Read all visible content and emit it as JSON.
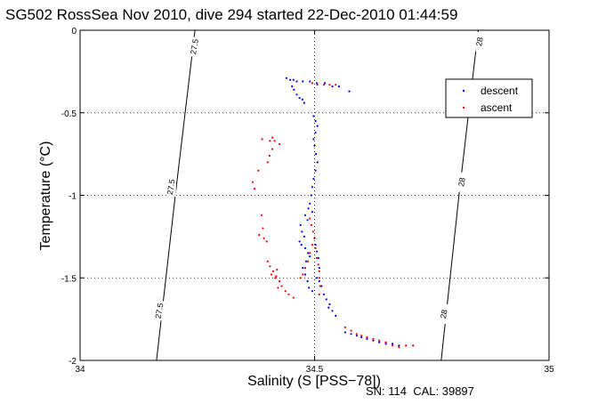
{
  "chart_data": {
    "type": "scatter",
    "title": "SG502 RossSea Nov 2010, dive 294 started 22-Dec-2010 01:44:59",
    "xlabel": "Salinity (S [PSS−78])",
    "ylabel": "Temperature (°C)",
    "xlim": [
      34,
      35
    ],
    "ylim": [
      -2,
      0
    ],
    "x_ticks": [
      "34",
      "34.5",
      "35"
    ],
    "y_ticks": [
      "0",
      "-0.5",
      "-1",
      "-1.5",
      "-2"
    ],
    "grid": true,
    "legend_position": "top-right",
    "footer": "SN: 114  CAL: 39897",
    "colors": {
      "descent": "#0000ff",
      "ascent": "#ff0000",
      "contour": "#000000"
    },
    "contours": [
      {
        "label": "27.5",
        "points": [
          [
            34.163,
            -2.0
          ],
          [
            34.203,
            -1.0
          ],
          [
            34.245,
            0.0
          ]
        ]
      },
      {
        "label": "28",
        "points": [
          [
            34.77,
            -2.0
          ],
          [
            34.808,
            -1.0
          ],
          [
            34.849,
            0.0
          ]
        ]
      }
    ],
    "contour_labels": [
      {
        "text": "27.5",
        "s": 34.245,
        "t": -0.1
      },
      {
        "text": "27.5",
        "s": 34.195,
        "t": -0.95
      },
      {
        "text": "27.5",
        "s": 34.17,
        "t": -1.7
      },
      {
        "text": "28",
        "s": 34.853,
        "t": -0.07
      },
      {
        "text": "28",
        "s": 34.815,
        "t": -0.92
      },
      {
        "text": "28",
        "s": 34.777,
        "t": -1.72
      }
    ],
    "series": [
      {
        "name": "descent",
        "points": [
          [
            34.44,
            -0.29
          ],
          [
            34.448,
            -0.3
          ],
          [
            34.455,
            -0.3
          ],
          [
            34.462,
            -0.31
          ],
          [
            34.475,
            -0.31
          ],
          [
            34.49,
            -0.31
          ],
          [
            34.505,
            -0.32
          ],
          [
            34.522,
            -0.32
          ],
          [
            34.538,
            -0.34
          ],
          [
            34.552,
            -0.34
          ],
          [
            34.574,
            -0.37
          ],
          [
            34.452,
            -0.34
          ],
          [
            34.456,
            -0.36
          ],
          [
            34.462,
            -0.39
          ],
          [
            34.468,
            -0.41
          ],
          [
            34.474,
            -0.42
          ],
          [
            34.478,
            -0.44
          ],
          [
            34.498,
            -0.52
          ],
          [
            34.502,
            -0.55
          ],
          [
            34.506,
            -0.58
          ],
          [
            34.502,
            -0.62
          ],
          [
            34.498,
            -0.66
          ],
          [
            34.5,
            -0.7
          ],
          [
            34.503,
            -0.75
          ],
          [
            34.506,
            -0.8
          ],
          [
            34.502,
            -0.85
          ],
          [
            34.498,
            -0.9
          ],
          [
            34.495,
            -0.95
          ],
          [
            34.493,
            -1.0
          ],
          [
            34.49,
            -1.05
          ],
          [
            34.487,
            -1.08
          ],
          [
            34.495,
            -1.1
          ],
          [
            34.48,
            -1.12
          ],
          [
            34.485,
            -1.15
          ],
          [
            34.47,
            -1.18
          ],
          [
            34.473,
            -1.22
          ],
          [
            34.478,
            -1.25
          ],
          [
            34.468,
            -1.28
          ],
          [
            34.472,
            -1.3
          ],
          [
            34.48,
            -1.32
          ],
          [
            34.486,
            -1.35
          ],
          [
            34.49,
            -1.37
          ],
          [
            34.482,
            -1.4
          ],
          [
            34.475,
            -1.44
          ],
          [
            34.48,
            -1.48
          ],
          [
            34.485,
            -1.52
          ],
          [
            34.488,
            -1.56
          ],
          [
            34.495,
            -1.58
          ],
          [
            34.51,
            -1.52
          ],
          [
            34.515,
            -1.55
          ],
          [
            34.52,
            -1.6
          ],
          [
            34.525,
            -1.63
          ],
          [
            34.532,
            -1.66
          ],
          [
            34.538,
            -1.7
          ],
          [
            34.545,
            -1.73
          ],
          [
            34.53,
            -1.68
          ],
          [
            34.5,
            -1.26
          ],
          [
            34.502,
            -1.3
          ],
          [
            34.505,
            -1.34
          ],
          [
            34.508,
            -1.38
          ],
          [
            34.51,
            -1.44
          ],
          [
            34.505,
            -1.5
          ],
          [
            34.565,
            -1.83
          ],
          [
            34.578,
            -1.84
          ],
          [
            34.59,
            -1.85
          ],
          [
            34.6,
            -1.86
          ],
          [
            34.612,
            -1.87
          ],
          [
            34.625,
            -1.88
          ],
          [
            34.638,
            -1.89
          ],
          [
            34.652,
            -1.9
          ],
          [
            34.666,
            -1.9
          ],
          [
            34.68,
            -1.91
          ],
          [
            34.695,
            -1.91
          ],
          [
            34.71,
            -1.91
          ]
        ]
      },
      {
        "name": "ascent",
        "points": [
          [
            34.495,
            -0.32
          ],
          [
            34.506,
            -0.33
          ],
          [
            34.52,
            -0.33
          ],
          [
            34.532,
            -0.33
          ],
          [
            34.545,
            -0.33
          ],
          [
            34.388,
            -0.66
          ],
          [
            34.405,
            -0.67
          ],
          [
            34.41,
            -0.65
          ],
          [
            34.415,
            -0.67
          ],
          [
            34.425,
            -0.69
          ],
          [
            34.41,
            -0.72
          ],
          [
            34.404,
            -0.76
          ],
          [
            34.4,
            -0.8
          ],
          [
            34.38,
            -0.85
          ],
          [
            34.368,
            -0.92
          ],
          [
            34.372,
            -0.96
          ],
          [
            34.387,
            -1.12
          ],
          [
            34.39,
            -1.2
          ],
          [
            34.382,
            -1.24
          ],
          [
            34.392,
            -1.26
          ],
          [
            34.398,
            -1.28
          ],
          [
            34.4,
            -1.4
          ],
          [
            34.405,
            -1.43
          ],
          [
            34.412,
            -1.46
          ],
          [
            34.418,
            -1.49
          ],
          [
            34.425,
            -1.52
          ],
          [
            34.43,
            -1.55
          ],
          [
            34.438,
            -1.58
          ],
          [
            34.445,
            -1.6
          ],
          [
            34.455,
            -1.62
          ],
          [
            34.42,
            -1.45
          ],
          [
            34.408,
            -1.48
          ],
          [
            34.416,
            -1.5
          ],
          [
            34.422,
            -1.56
          ],
          [
            34.49,
            -1.14
          ],
          [
            34.493,
            -1.18
          ],
          [
            34.497,
            -1.22
          ],
          [
            34.5,
            -1.26
          ],
          [
            34.495,
            -1.3
          ],
          [
            34.49,
            -1.35
          ],
          [
            34.486,
            -1.4
          ],
          [
            34.48,
            -1.44
          ],
          [
            34.475,
            -1.48
          ],
          [
            34.47,
            -1.5
          ],
          [
            34.502,
            -1.32
          ],
          [
            34.505,
            -1.38
          ],
          [
            34.508,
            -1.42
          ],
          [
            34.51,
            -1.46
          ],
          [
            34.51,
            -1.5
          ],
          [
            34.512,
            -1.55
          ],
          [
            34.51,
            -1.6
          ],
          [
            34.565,
            -1.8
          ],
          [
            34.578,
            -1.82
          ],
          [
            34.59,
            -1.84
          ],
          [
            34.6,
            -1.85
          ],
          [
            34.612,
            -1.86
          ],
          [
            34.625,
            -1.87
          ],
          [
            34.638,
            -1.88
          ],
          [
            34.652,
            -1.89
          ],
          [
            34.666,
            -1.91
          ],
          [
            34.68,
            -1.92
          ],
          [
            34.695,
            -1.91
          ],
          [
            34.71,
            -1.91
          ]
        ]
      }
    ]
  }
}
